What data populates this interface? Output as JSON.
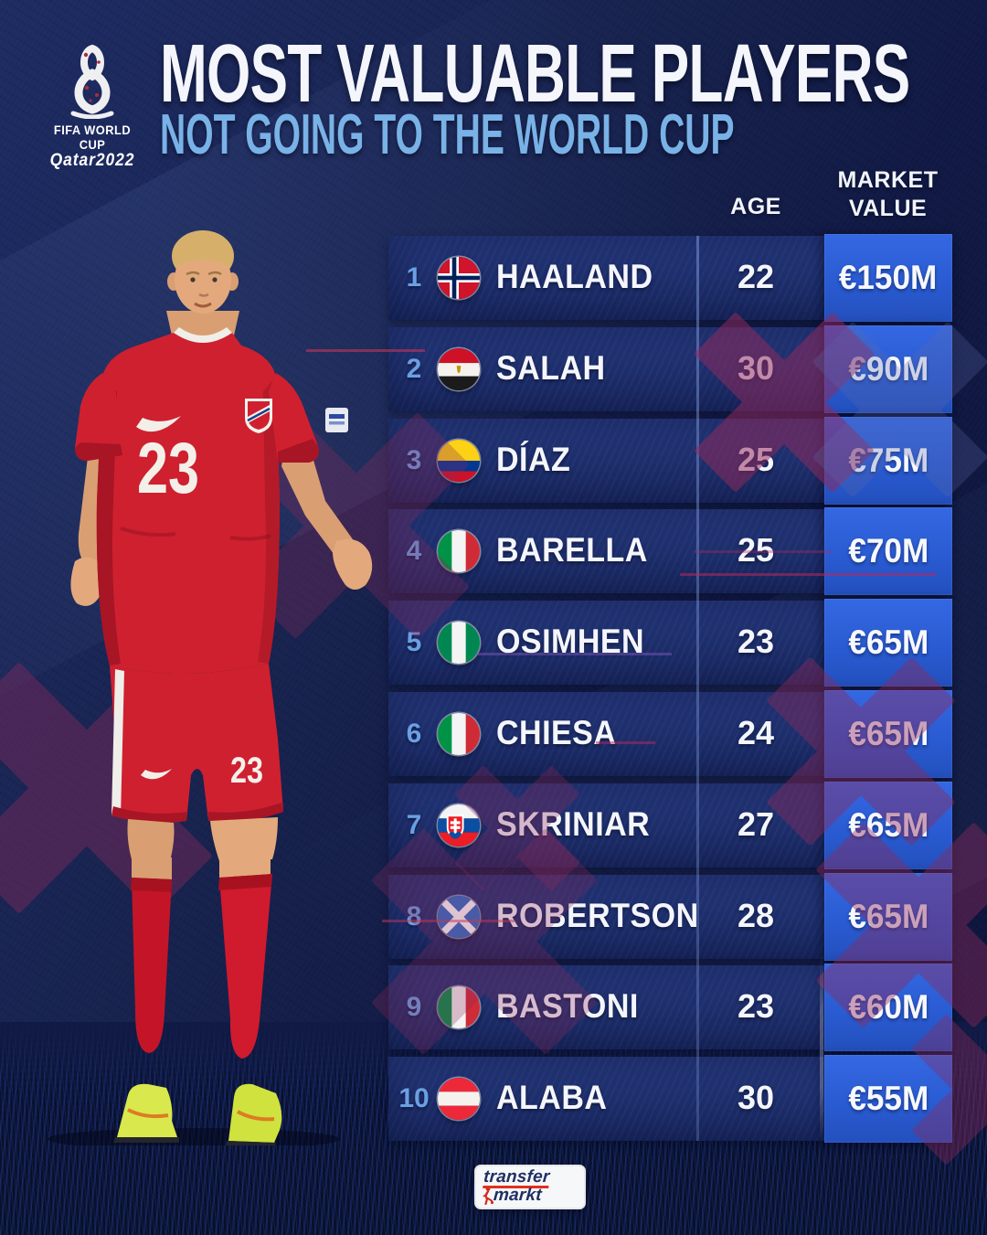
{
  "header": {
    "fifa_badge": {
      "icon": "fifa-world-cup-qatar-2022-emblem",
      "line1": "FIFA WORLD CUP",
      "line2": "Qatar2022"
    },
    "title": "MOST VALUABLE PLAYERS",
    "subtitle": "NOT GOING TO THE WORLD CUP"
  },
  "table": {
    "col_age": "AGE",
    "col_market_1": "MARKET",
    "col_market_2": "VALUE",
    "rows": [
      {
        "rank": "1",
        "flag": "norway",
        "country": "Norway",
        "player": "HAALAND",
        "age": "22",
        "value": "€150M"
      },
      {
        "rank": "2",
        "flag": "egypt",
        "country": "Egypt",
        "player": "SALAH",
        "age": "30",
        "value": "€90M"
      },
      {
        "rank": "3",
        "flag": "colombia",
        "country": "Colombia",
        "player": "DÍAZ",
        "age": "25",
        "value": "€75M"
      },
      {
        "rank": "4",
        "flag": "italy",
        "country": "Italy",
        "player": "BARELLA",
        "age": "25",
        "value": "€70M"
      },
      {
        "rank": "5",
        "flag": "nigeria",
        "country": "Nigeria",
        "player": "OSIMHEN",
        "age": "23",
        "value": "€65M"
      },
      {
        "rank": "6",
        "flag": "italy",
        "country": "Italy",
        "player": "CHIESA",
        "age": "24",
        "value": "€65M"
      },
      {
        "rank": "7",
        "flag": "slovakia",
        "country": "Slovakia",
        "player": "SKRINIAR",
        "age": "27",
        "value": "€65M"
      },
      {
        "rank": "8",
        "flag": "scotland",
        "country": "Scotland",
        "player": "ROBERTSON",
        "age": "28",
        "value": "€65M"
      },
      {
        "rank": "9",
        "flag": "italy",
        "country": "Italy",
        "player": "BASTONI",
        "age": "23",
        "value": "€60M"
      },
      {
        "rank": "10",
        "flag": "austria",
        "country": "Austria",
        "player": "ALABA",
        "age": "30",
        "value": "€55M"
      }
    ]
  },
  "player_image": {
    "description": "Erling Haaland wearing red Norway kit",
    "jersey_number": "23",
    "shorts_number": "23"
  },
  "footer": {
    "icon": "transfermarkt-logo",
    "logo_line1": "transfer",
    "logo_line2": "markt"
  },
  "colors": {
    "background_navy": "#131d4a",
    "row_bar_blue": "#1d2e6c",
    "value_box_blue": "#2a5bd2",
    "subtitle_blue": "#79b2e6",
    "rank_blue": "#6b9fe3",
    "x_mark_red": "#8e2a5c",
    "kit_red": "#cf2030",
    "boot_volt": "#d9e84c"
  },
  "chart_data": {
    "type": "table",
    "title": "MOST VALUABLE PLAYERS",
    "subtitle": "NOT GOING TO THE WORLD CUP",
    "columns": [
      "Rank",
      "Country",
      "Player",
      "Age",
      "Market value"
    ],
    "rows": [
      [
        1,
        "Norway",
        "Haaland",
        22,
        "€150M"
      ],
      [
        2,
        "Egypt",
        "Salah",
        30,
        "€90M"
      ],
      [
        3,
        "Colombia",
        "Díaz",
        25,
        "€75M"
      ],
      [
        4,
        "Italy",
        "Barella",
        25,
        "€70M"
      ],
      [
        5,
        "Nigeria",
        "Osimhen",
        23,
        "€65M"
      ],
      [
        6,
        "Italy",
        "Chiesa",
        24,
        "€65M"
      ],
      [
        7,
        "Slovakia",
        "Skriniar",
        27,
        "€65M"
      ],
      [
        8,
        "Scotland",
        "Robertson",
        28,
        "€65M"
      ],
      [
        9,
        "Italy",
        "Bastoni",
        23,
        "€60M"
      ],
      [
        10,
        "Austria",
        "Alaba",
        30,
        "€55M"
      ]
    ],
    "source_logo": "transfermarkt"
  }
}
